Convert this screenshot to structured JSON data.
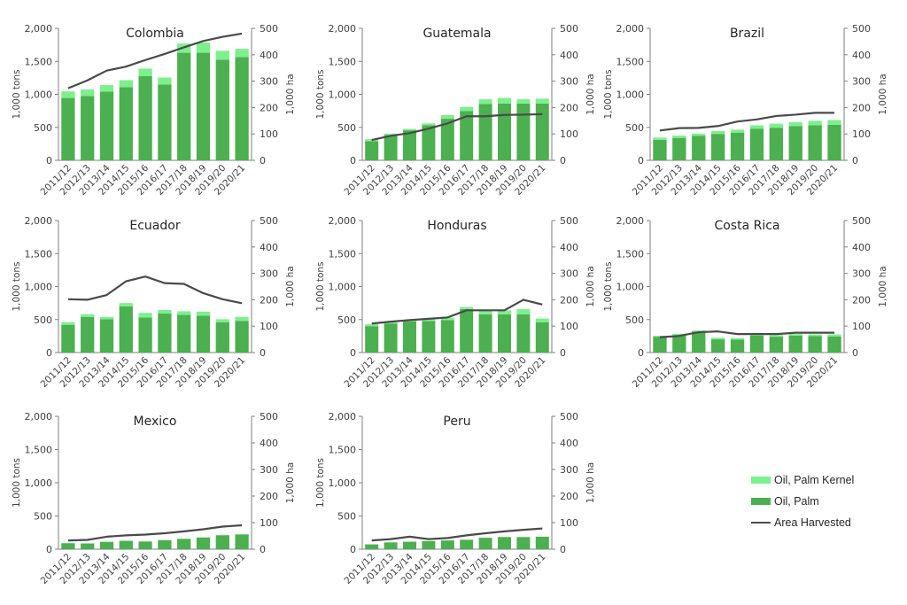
{
  "chart_data": {
    "type": "bar",
    "subtype": "stacked bar with secondary-axis line, small multiples",
    "categories": [
      "2011/12",
      "2012/13",
      "2013/14",
      "2014/15",
      "2015/16",
      "2016/17",
      "2017/18",
      "2018/19",
      "2019/20",
      "2020/21"
    ],
    "left_axis": {
      "label": "1,000 tons",
      "ylim": [
        0,
        2000
      ],
      "ticks": [
        "0",
        "500",
        "1,000",
        "1,500",
        "2,000"
      ],
      "tick_values": [
        0,
        500,
        1000,
        1500,
        2000
      ]
    },
    "right_axis": {
      "label": "1,000 ha",
      "ylim": [
        0,
        500
      ],
      "ticks": [
        "0",
        "100",
        "200",
        "300",
        "400",
        "500"
      ],
      "tick_values": [
        0,
        100,
        200,
        300,
        400,
        500
      ]
    },
    "grid": false,
    "colors": {
      "oil_palm": "#4caf50",
      "oil_palm_kernel": "#7cf08d",
      "area": "#4a4a4a"
    },
    "legend": {
      "position": "bottom-right",
      "entries": [
        {
          "name": "Oil, Palm Kernel",
          "kind": "bar",
          "color": "#7cf08d"
        },
        {
          "name": "Oil, Palm",
          "kind": "bar",
          "color": "#4caf50"
        },
        {
          "name": "Area Harvested",
          "kind": "line",
          "color": "#4a4a4a"
        }
      ]
    },
    "panels": [
      {
        "title": "Colombia",
        "oil_palm": [
          945,
          975,
          1040,
          1110,
          1275,
          1150,
          1630,
          1630,
          1525,
          1565
        ],
        "oil_palm_kernel": [
          100,
          100,
          100,
          105,
          115,
          105,
          140,
          155,
          135,
          125
        ],
        "area_harvested": [
          273,
          303,
          340,
          355,
          380,
          403,
          428,
          452,
          468,
          480
        ]
      },
      {
        "title": "Guatemala",
        "oil_palm": [
          290,
          385,
          455,
          530,
          630,
          745,
          855,
          860,
          860,
          860
        ],
        "oil_palm_kernel": [
          30,
          20,
          20,
          30,
          55,
          65,
          70,
          85,
          65,
          75
        ],
        "area_harvested": [
          77,
          93,
          103,
          120,
          140,
          167,
          167,
          172,
          173,
          175
        ]
      },
      {
        "title": "Brazil",
        "oil_palm": [
          310,
          340,
          370,
          400,
          420,
          480,
          495,
          520,
          530,
          540
        ],
        "oil_palm_kernel": [
          35,
          35,
          35,
          45,
          45,
          50,
          60,
          60,
          70,
          70
        ],
        "area_harvested": [
          113,
          122,
          123,
          130,
          147,
          155,
          168,
          173,
          180,
          180
        ]
      },
      {
        "title": "Ecuador",
        "oil_palm": [
          420,
          540,
          505,
          700,
          530,
          590,
          570,
          560,
          460,
          480
        ],
        "oil_palm_kernel": [
          40,
          40,
          35,
          50,
          70,
          55,
          55,
          60,
          45,
          60
        ],
        "area_harvested": [
          202,
          200,
          218,
          270,
          288,
          263,
          260,
          225,
          202,
          187
        ]
      },
      {
        "title": "Honduras",
        "oil_palm": [
          400,
          440,
          470,
          480,
          490,
          660,
          580,
          580,
          580,
          460
        ],
        "oil_palm_kernel": [
          30,
          20,
          25,
          25,
          40,
          30,
          60,
          60,
          80,
          55
        ],
        "area_harvested": [
          110,
          117,
          123,
          128,
          133,
          160,
          160,
          160,
          200,
          182
        ]
      },
      {
        "title": "Costa Rica",
        "oil_palm": [
          240,
          265,
          320,
          200,
          195,
          255,
          240,
          255,
          250,
          245
        ],
        "oil_palm_kernel": [
          15,
          20,
          15,
          25,
          25,
          15,
          25,
          25,
          25,
          30
        ],
        "area_harvested": [
          58,
          63,
          77,
          80,
          70,
          70,
          70,
          75,
          75,
          75
        ]
      },
      {
        "title": "Mexico",
        "oil_palm": [
          90,
          85,
          110,
          125,
          115,
          135,
          155,
          175,
          210,
          220
        ],
        "oil_palm_kernel": [
          5,
          5,
          5,
          5,
          5,
          5,
          5,
          5,
          5,
          5
        ],
        "area_harvested": [
          33,
          35,
          47,
          52,
          55,
          60,
          67,
          75,
          85,
          90
        ]
      },
      {
        "title": "Peru",
        "oil_palm": [
          72,
          102,
          112,
          122,
          132,
          142,
          172,
          182,
          182,
          187
        ],
        "oil_palm_kernel": [
          3,
          3,
          3,
          3,
          3,
          3,
          3,
          3,
          3,
          3
        ],
        "area_harvested": [
          33,
          38,
          47,
          38,
          42,
          52,
          60,
          67,
          73,
          78
        ]
      }
    ]
  }
}
